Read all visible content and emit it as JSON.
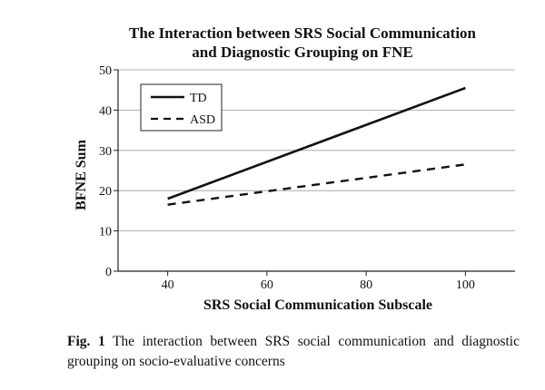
{
  "chart_data": {
    "type": "line",
    "title_lines": [
      "The Interaction between SRS Social Communication",
      "and Diagnostic Grouping on FNE"
    ],
    "xlabel": "SRS Social Communication Subscale",
    "ylabel": "BFNE Sum",
    "x_ticks": [
      40,
      60,
      80,
      100
    ],
    "y_ticks": [
      0,
      10,
      20,
      30,
      40,
      50
    ],
    "xlim": [
      30,
      110
    ],
    "ylim": [
      0,
      50
    ],
    "grid": "horizontal",
    "legend_position": "top-left",
    "series": [
      {
        "name": "TD",
        "style": "solid",
        "x": [
          40,
          100
        ],
        "y": [
          18,
          45.5
        ]
      },
      {
        "name": "ASD",
        "style": "dashed",
        "x": [
          40,
          100
        ],
        "y": [
          16.5,
          26.5
        ]
      }
    ]
  },
  "caption": {
    "label": "Fig. 1",
    "text": "The interaction between SRS social communication and diagnostic grouping on socio-evaluative concerns"
  },
  "colors": {
    "line": "#111111",
    "grid": "#9a9a9a",
    "axis": "#222222"
  }
}
